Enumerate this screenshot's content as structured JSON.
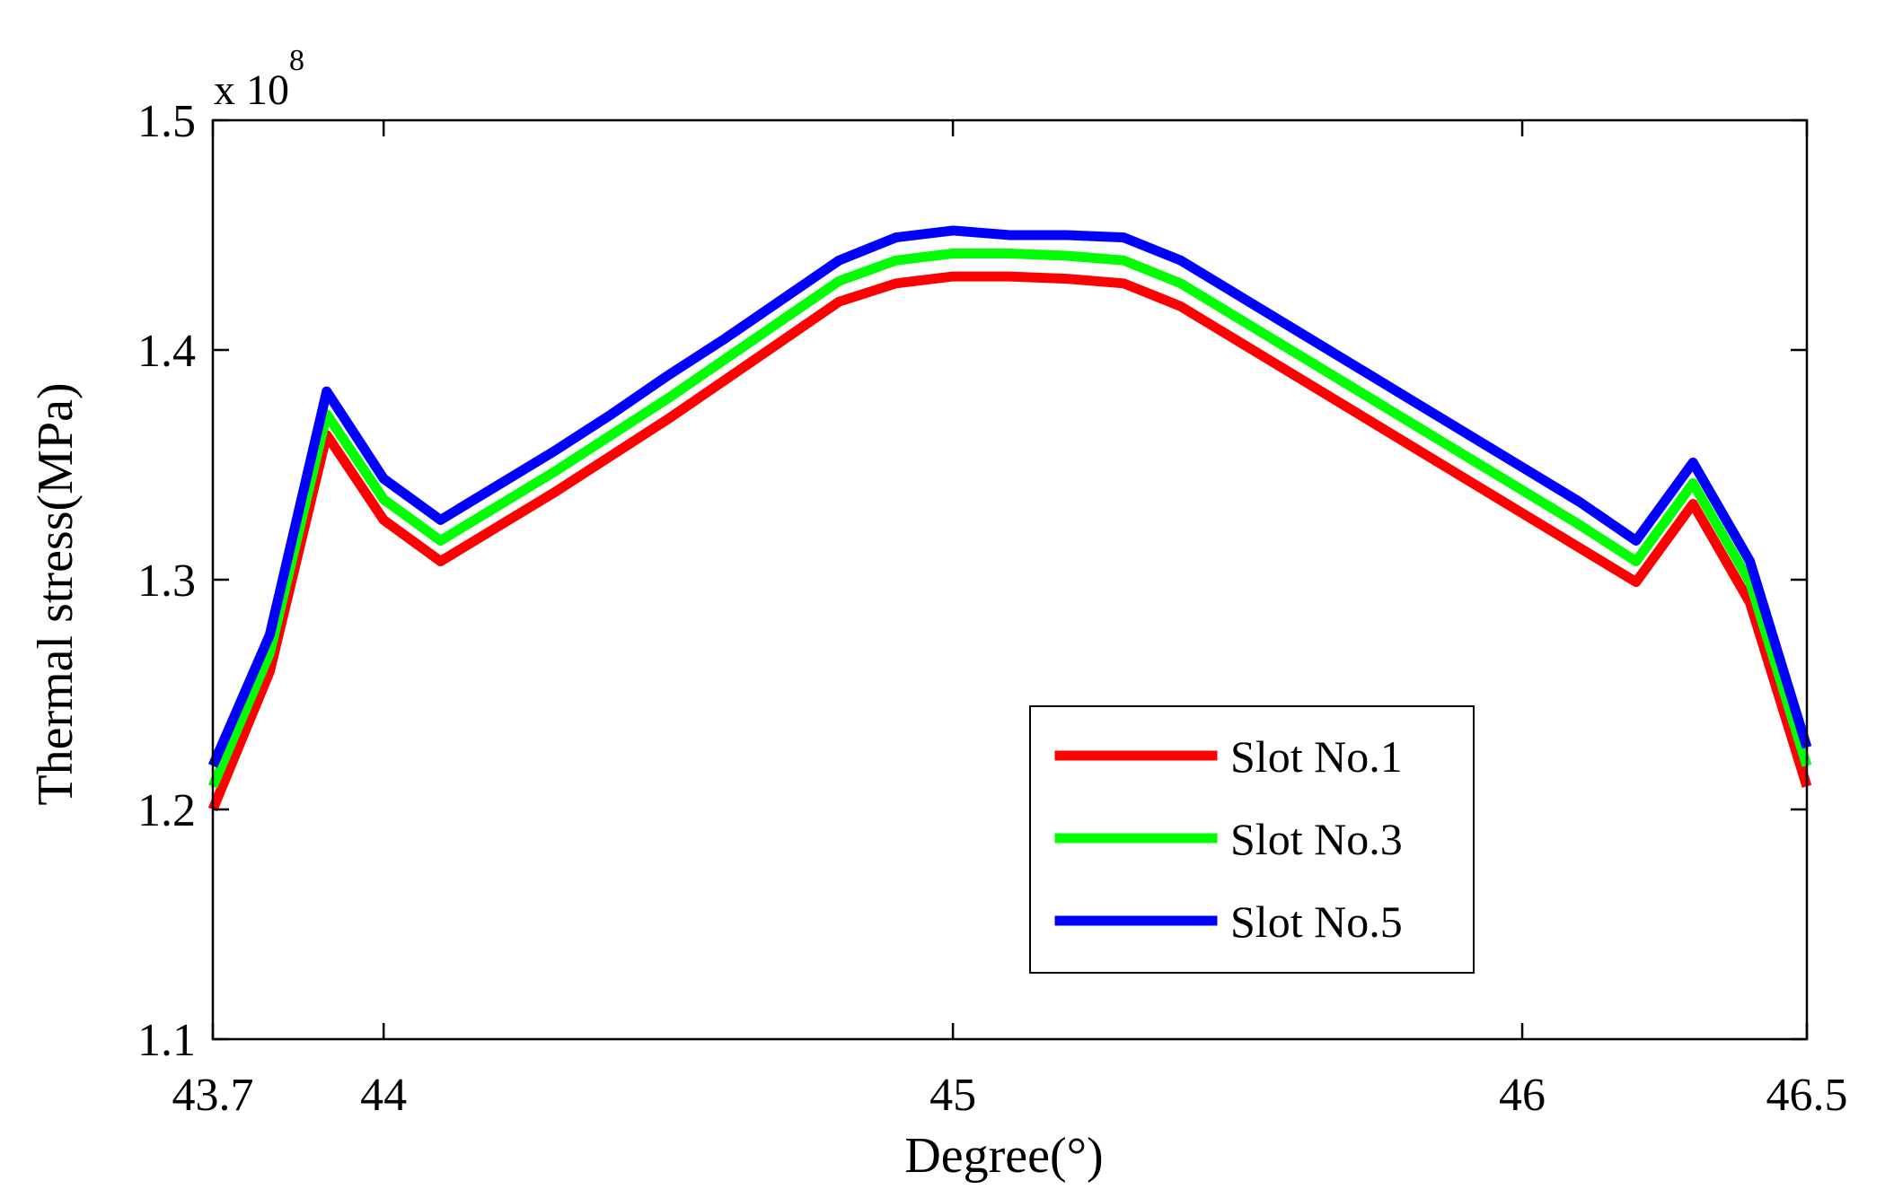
{
  "chart_data": {
    "type": "line",
    "title": "",
    "xlabel": "Degree(°)",
    "ylabel": "Thermal stress(MPa)",
    "y_exponent": {
      "prefix": "x 10",
      "power": "8"
    },
    "xlim": [
      43.7,
      46.5
    ],
    "ylim": [
      1.1,
      1.5
    ],
    "x_ticks": [
      43.7,
      44,
      45,
      46,
      46.5
    ],
    "x_tick_labels": [
      "43.7",
      "44",
      "45",
      "46",
      "46.5"
    ],
    "y_ticks": [
      1.1,
      1.2,
      1.3,
      1.4,
      1.5
    ],
    "y_tick_labels": [
      "1.1",
      "1.2",
      "1.3",
      "1.4",
      "1.5"
    ],
    "grid": false,
    "legend_position": "bottom-right",
    "series": [
      {
        "name": "Slot No.1",
        "color": "#ff0000",
        "x": [
          43.7,
          43.8,
          43.9,
          44.0,
          44.1,
          44.2,
          44.3,
          44.4,
          44.5,
          44.6,
          44.7,
          44.8,
          44.9,
          45.0,
          45.1,
          45.2,
          45.3,
          45.4,
          45.5,
          45.6,
          45.7,
          45.8,
          45.9,
          46.0,
          46.1,
          46.2,
          46.3,
          46.4,
          46.5
        ],
        "values": [
          1.2,
          1.26,
          1.363,
          1.326,
          1.308,
          1.323,
          1.338,
          1.354,
          1.37,
          1.387,
          1.404,
          1.421,
          1.429,
          1.432,
          1.432,
          1.431,
          1.429,
          1.419,
          1.404,
          1.389,
          1.374,
          1.359,
          1.344,
          1.329,
          1.314,
          1.299,
          1.333,
          1.29,
          1.21
        ]
      },
      {
        "name": "Slot No.3",
        "color": "#00ff00",
        "x": [
          43.7,
          43.8,
          43.9,
          44.0,
          44.1,
          44.2,
          44.3,
          44.4,
          44.5,
          44.6,
          44.7,
          44.8,
          44.9,
          45.0,
          45.1,
          45.2,
          45.3,
          45.4,
          45.5,
          45.6,
          45.7,
          45.8,
          45.9,
          46.0,
          46.1,
          46.2,
          46.3,
          46.4,
          46.5
        ],
        "values": [
          1.21,
          1.268,
          1.372,
          1.335,
          1.317,
          1.332,
          1.347,
          1.363,
          1.379,
          1.396,
          1.413,
          1.43,
          1.439,
          1.442,
          1.442,
          1.441,
          1.439,
          1.429,
          1.414,
          1.399,
          1.384,
          1.369,
          1.354,
          1.339,
          1.324,
          1.308,
          1.342,
          1.299,
          1.219
        ]
      },
      {
        "name": "Slot No.5",
        "color": "#0000ff",
        "x": [
          43.7,
          43.8,
          43.9,
          44.0,
          44.1,
          44.2,
          44.3,
          44.4,
          44.5,
          44.6,
          44.7,
          44.8,
          44.9,
          45.0,
          45.1,
          45.2,
          45.3,
          45.4,
          45.5,
          45.6,
          45.7,
          45.8,
          45.9,
          46.0,
          46.1,
          46.2,
          46.3,
          46.4,
          46.5
        ],
        "values": [
          1.219,
          1.276,
          1.382,
          1.344,
          1.326,
          1.341,
          1.356,
          1.372,
          1.389,
          1.405,
          1.422,
          1.439,
          1.449,
          1.452,
          1.45,
          1.45,
          1.449,
          1.439,
          1.424,
          1.409,
          1.394,
          1.379,
          1.364,
          1.349,
          1.334,
          1.317,
          1.351,
          1.308,
          1.227
        ]
      }
    ]
  }
}
